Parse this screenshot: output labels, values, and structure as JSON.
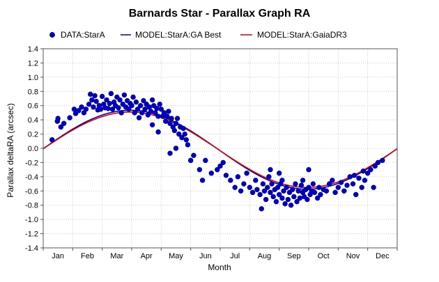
{
  "chart_data": {
    "type": "scatter",
    "title": "Barnards Star - Parallax Graph RA",
    "xlabel": "Month",
    "ylabel": "Parallax deltaRA (arcsec)",
    "ylim": [
      -1.4,
      1.4
    ],
    "yticks": [
      "1.4",
      "1.2",
      "1.0",
      "0.8",
      "0.6",
      "0.4",
      "0.2",
      "0.0",
      "-0.2",
      "-0.4",
      "-0.6",
      "-0.8",
      "-1.0",
      "-1.2",
      "-1.4"
    ],
    "xlim": [
      0,
      12
    ],
    "x_unit": "month of year (0 = Jan 1)",
    "categories": [
      "Jan",
      "Feb",
      "Mar",
      "Apr",
      "May",
      "Jun",
      "Jul",
      "Aug",
      "Sep",
      "Oct",
      "Nov",
      "Dec"
    ],
    "grid": true,
    "legend_position": "top",
    "legend": [
      "DATA:StarA",
      "MODEL:StarA:GA Best",
      "MODEL:StarA:GaiaDR3"
    ],
    "colors": {
      "data": "#0000cc",
      "model_ga": "#0000b0",
      "model_gaia": "#dd0000",
      "grid": "#c8c8c8"
    },
    "series": [
      {
        "name": "DATA:StarA",
        "kind": "points",
        "points": [
          [
            0.3,
            0.12
          ],
          [
            0.48,
            0.38
          ],
          [
            0.5,
            0.42
          ],
          [
            0.6,
            0.3
          ],
          [
            0.7,
            0.35
          ],
          [
            0.9,
            0.43
          ],
          [
            1.05,
            0.55
          ],
          [
            1.1,
            0.49
          ],
          [
            1.2,
            0.53
          ],
          [
            1.3,
            0.58
          ],
          [
            1.38,
            0.5
          ],
          [
            1.45,
            0.55
          ],
          [
            1.55,
            0.62
          ],
          [
            1.6,
            0.76
          ],
          [
            1.65,
            0.68
          ],
          [
            1.7,
            0.58
          ],
          [
            1.75,
            0.74
          ],
          [
            1.8,
            0.66
          ],
          [
            1.85,
            0.54
          ],
          [
            1.9,
            0.6
          ],
          [
            1.95,
            0.55
          ],
          [
            2.0,
            0.73
          ],
          [
            2.05,
            0.62
          ],
          [
            2.1,
            0.57
          ],
          [
            2.15,
            0.68
          ],
          [
            2.2,
            0.56
          ],
          [
            2.25,
            0.63
          ],
          [
            2.3,
            0.77
          ],
          [
            2.35,
            0.55
          ],
          [
            2.4,
            0.65
          ],
          [
            2.45,
            0.6
          ],
          [
            2.5,
            0.72
          ],
          [
            2.55,
            0.57
          ],
          [
            2.6,
            0.68
          ],
          [
            2.65,
            0.5
          ],
          [
            2.7,
            0.62
          ],
          [
            2.75,
            0.75
          ],
          [
            2.8,
            0.58
          ],
          [
            2.85,
            0.67
          ],
          [
            2.9,
            0.55
          ],
          [
            2.95,
            0.63
          ],
          [
            3.0,
            0.6
          ],
          [
            3.05,
            0.72
          ],
          [
            3.1,
            0.5
          ],
          [
            3.15,
            0.65
          ],
          [
            3.2,
            0.55
          ],
          [
            3.25,
            0.43
          ],
          [
            3.3,
            0.6
          ],
          [
            3.35,
            0.5
          ],
          [
            3.4,
            0.67
          ],
          [
            3.45,
            0.55
          ],
          [
            3.5,
            0.62
          ],
          [
            3.55,
            0.47
          ],
          [
            3.6,
            0.58
          ],
          [
            3.65,
            0.52
          ],
          [
            3.7,
            0.68
          ],
          [
            3.75,
            0.6
          ],
          [
            3.8,
            0.5
          ],
          [
            3.85,
            0.56
          ],
          [
            3.9,
            0.45
          ],
          [
            3.95,
            0.62
          ],
          [
            4.0,
            0.55
          ],
          [
            4.05,
            0.45
          ],
          [
            4.1,
            0.5
          ],
          [
            4.15,
            0.38
          ],
          [
            4.2,
            0.45
          ],
          [
            4.25,
            0.52
          ],
          [
            4.3,
            0.35
          ],
          [
            4.35,
            0.42
          ],
          [
            4.4,
            0.3
          ],
          [
            4.45,
            0.25
          ],
          [
            4.5,
            0.35
          ],
          [
            4.55,
            0.42
          ],
          [
            4.6,
            0.2
          ],
          [
            4.65,
            0.3
          ],
          [
            4.7,
            0.15
          ],
          [
            4.75,
            0.28
          ],
          [
            4.8,
            0.2
          ],
          [
            4.85,
            0.12
          ],
          [
            4.9,
            0.05
          ],
          [
            3.7,
            0.33
          ],
          [
            3.9,
            0.23
          ],
          [
            4.3,
            -0.07
          ],
          [
            4.5,
            0.0
          ],
          [
            5.1,
            -0.1
          ],
          [
            5.0,
            -0.17
          ],
          [
            5.3,
            -0.3
          ],
          [
            5.4,
            -0.45
          ],
          [
            5.5,
            -0.17
          ],
          [
            5.7,
            -0.35
          ],
          [
            5.9,
            -0.3
          ],
          [
            6.0,
            -0.25
          ],
          [
            6.1,
            -0.2
          ],
          [
            6.2,
            -0.38
          ],
          [
            6.35,
            -0.45
          ],
          [
            6.5,
            -0.55
          ],
          [
            6.6,
            -0.4
          ],
          [
            6.7,
            -0.6
          ],
          [
            6.8,
            -0.5
          ],
          [
            6.9,
            -0.35
          ],
          [
            7.0,
            -0.55
          ],
          [
            7.1,
            -0.62
          ],
          [
            7.2,
            -0.45
          ],
          [
            7.25,
            -0.58
          ],
          [
            7.35,
            -0.65
          ],
          [
            7.4,
            -0.85
          ],
          [
            7.45,
            -0.5
          ],
          [
            7.5,
            -0.6
          ],
          [
            7.55,
            -0.72
          ],
          [
            7.6,
            -0.55
          ],
          [
            7.65,
            -0.4
          ],
          [
            7.7,
            -0.62
          ],
          [
            7.75,
            -0.5
          ],
          [
            7.8,
            -0.68
          ],
          [
            7.85,
            -0.58
          ],
          [
            7.9,
            -0.75
          ],
          [
            7.95,
            -0.55
          ],
          [
            8.0,
            -0.65
          ],
          [
            8.05,
            -0.5
          ],
          [
            8.1,
            -0.7
          ],
          [
            8.15,
            -0.6
          ],
          [
            8.2,
            -0.78
          ],
          [
            8.25,
            -0.55
          ],
          [
            8.3,
            -0.72
          ],
          [
            8.35,
            -0.62
          ],
          [
            8.4,
            -0.8
          ],
          [
            8.45,
            -0.58
          ],
          [
            8.5,
            -0.68
          ],
          [
            8.55,
            -0.5
          ],
          [
            8.6,
            -0.75
          ],
          [
            8.65,
            -0.6
          ],
          [
            8.7,
            -0.7
          ],
          [
            8.75,
            -0.52
          ],
          [
            8.8,
            -0.62
          ],
          [
            8.85,
            -0.68
          ],
          [
            8.9,
            -0.58
          ],
          [
            8.95,
            -0.72
          ],
          [
            9.0,
            -0.55
          ],
          [
            9.05,
            -0.65
          ],
          [
            9.1,
            -0.6
          ],
          [
            9.15,
            -0.5
          ],
          [
            9.2,
            -0.62
          ],
          [
            9.3,
            -0.7
          ],
          [
            9.35,
            -0.55
          ],
          [
            9.4,
            -0.65
          ],
          [
            9.5,
            -0.58
          ],
          [
            9.6,
            -0.6
          ],
          [
            9.7,
            -0.5
          ],
          [
            9.8,
            -0.45
          ],
          [
            9.9,
            -0.62
          ],
          [
            8.1,
            -0.45
          ],
          [
            8.0,
            -0.35
          ],
          [
            7.7,
            -0.3
          ],
          [
            8.8,
            -0.45
          ],
          [
            9.0,
            -0.3
          ],
          [
            10.0,
            -0.55
          ],
          [
            10.1,
            -0.48
          ],
          [
            10.2,
            -0.6
          ],
          [
            10.3,
            -0.52
          ],
          [
            10.4,
            -0.4
          ],
          [
            10.5,
            -0.5
          ],
          [
            10.55,
            -0.38
          ],
          [
            10.6,
            -0.65
          ],
          [
            10.7,
            -0.42
          ],
          [
            10.8,
            -0.55
          ],
          [
            10.85,
            -0.32
          ],
          [
            10.9,
            -0.45
          ],
          [
            11.0,
            -0.35
          ],
          [
            11.1,
            -0.3
          ],
          [
            11.2,
            -0.55
          ],
          [
            11.25,
            -0.25
          ],
          [
            11.35,
            -0.2
          ],
          [
            11.5,
            -0.17
          ]
        ]
      },
      {
        "name": "MODEL:StarA:GA Best",
        "kind": "line",
        "amplitude": 0.555,
        "phase_month": 2.95,
        "offset": -0.02
      },
      {
        "name": "MODEL:StarA:GaiaDR3",
        "kind": "line",
        "amplitude": 0.53,
        "phase_month": 2.95,
        "offset": -0.02
      }
    ]
  }
}
